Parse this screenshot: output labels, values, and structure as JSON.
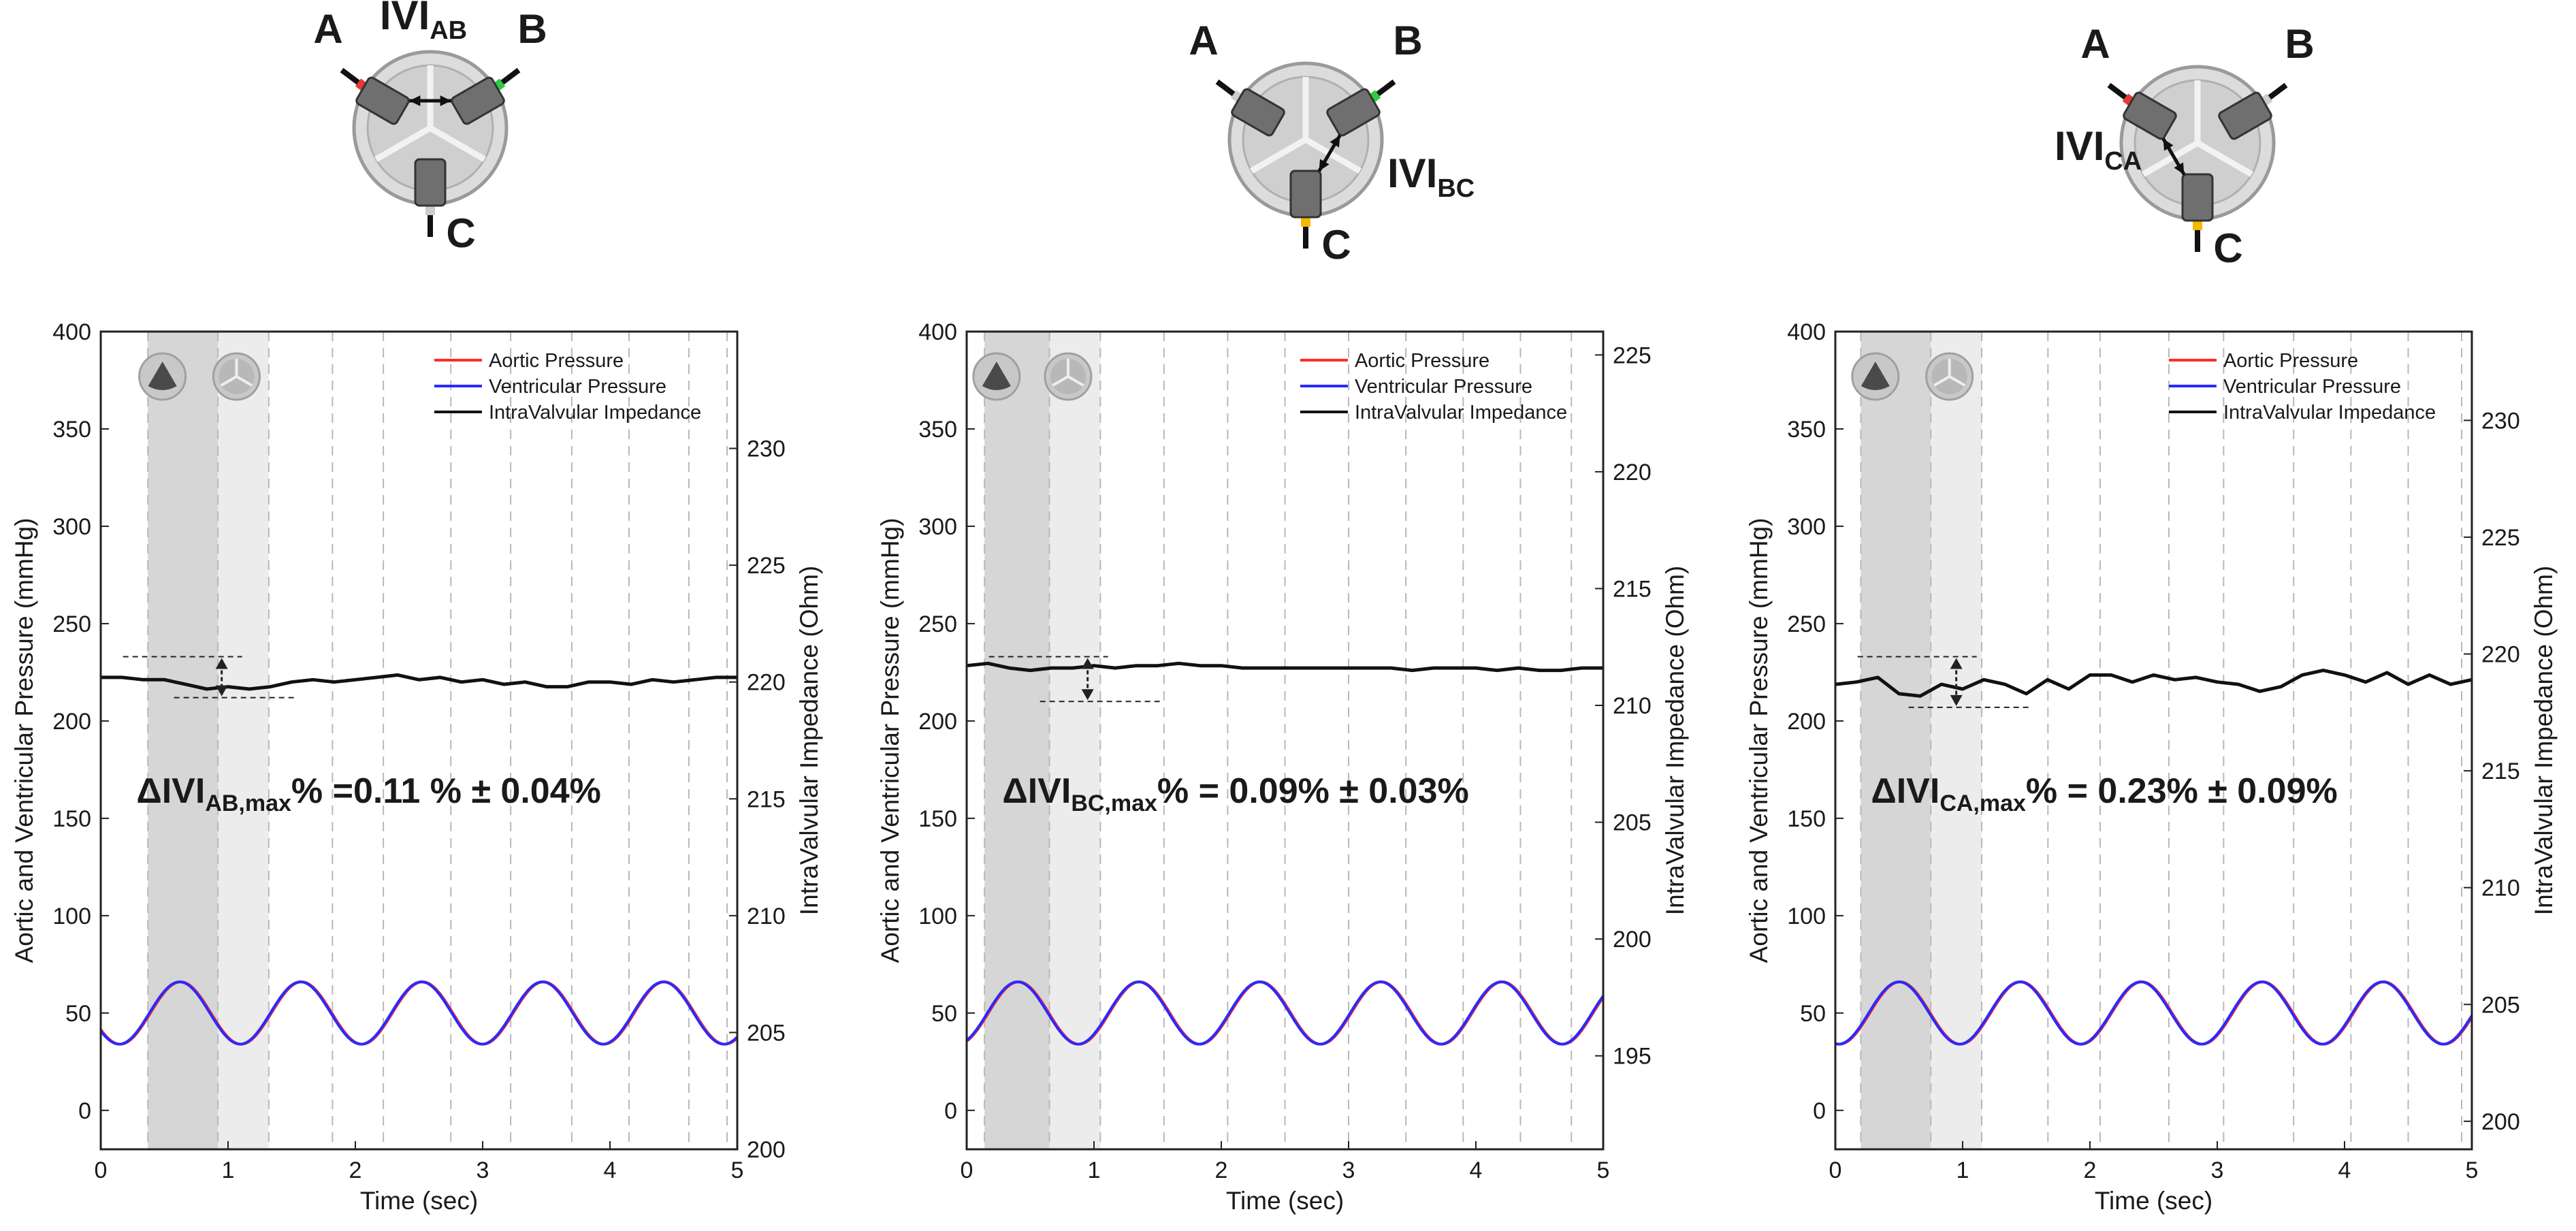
{
  "chart_data": [
    {
      "type": "line",
      "diagram": {
        "electrodes": [
          "A",
          "B",
          "C"
        ],
        "ivi_label": "IVI",
        "ivi_subscript": "AB",
        "pair": [
          "A",
          "B"
        ],
        "colors": {
          "A": "#e53935",
          "B": "#2ecc40",
          "C": "#cccccc"
        }
      },
      "annotation": {
        "prefix": "ΔIVI",
        "sub": "AB,max",
        "suffix": "% =0.11 % ± 0.04%"
      },
      "xlabel": "Time (sec)",
      "ylabel_left": "Aortic and Ventricular Pressure (mmHg)",
      "ylabel_right": "IntraValvular Impedance (Ohm)",
      "xlim": [
        0,
        5
      ],
      "ylim_left": [
        -20,
        400
      ],
      "ylim_right": [
        200,
        235
      ],
      "x_ticks": [
        "0",
        "1",
        "2",
        "3",
        "4",
        "5"
      ],
      "y_ticks_left": [
        "0",
        "50",
        "100",
        "150",
        "200",
        "250",
        "300",
        "350",
        "400"
      ],
      "y_ticks_right": [
        "200",
        "205",
        "210",
        "215",
        "220",
        "225",
        "230"
      ],
      "y_tick_values_right": [
        200,
        205,
        210,
        215,
        220,
        225,
        230
      ],
      "legend": {
        "position": "top-right",
        "entries": [
          "Aortic Pressure",
          "Ventricular Pressure",
          "IntraValvular Impedance"
        ],
        "colors": [
          "#ff2a2a",
          "#2a2aff",
          "#111111"
        ]
      },
      "shaded_regions": [
        {
          "from": 0.37,
          "to": 0.92,
          "shade": "dark"
        },
        {
          "from": 0.92,
          "to": 1.32,
          "shade": "light"
        }
      ],
      "dashed_lines_x": [
        1.82,
        2.22,
        2.75,
        3.22,
        3.7,
        4.15,
        4.62,
        4.92
      ],
      "pressure": {
        "mean": 50,
        "amplitude": 16,
        "period": 0.95,
        "peak_time": 0.62
      },
      "impedance_values": [
        220.2,
        220.2,
        220.1,
        220.1,
        219.9,
        219.7,
        219.8,
        219.7,
        219.8,
        220.0,
        220.1,
        220.0,
        220.1,
        220.2,
        220.3,
        220.1,
        220.2,
        220.0,
        220.1,
        219.9,
        220.0,
        219.8,
        219.8,
        220.0,
        220.0,
        219.9,
        220.1,
        220.0,
        220.1,
        220.2,
        220.2
      ],
      "arrow": {
        "x": 0.95,
        "y_top": 233,
        "y_bottom": 212
      }
    },
    {
      "type": "line",
      "diagram": {
        "electrodes": [
          "A",
          "B",
          "C"
        ],
        "ivi_label": "IVI",
        "ivi_subscript": "BC",
        "pair": [
          "B",
          "C"
        ],
        "colors": {
          "A": "#cccccc",
          "B": "#2ecc40",
          "C": "#f5b800"
        }
      },
      "annotation": {
        "prefix": "ΔIVI",
        "sub": "BC,max",
        "suffix": "% = 0.09% ± 0.03%"
      },
      "xlabel": "Time (sec)",
      "ylabel_left": "Aortic and Ventricular Pressure (mmHg)",
      "ylabel_right": "IntraValvular Impedance (Ohm)",
      "xlim": [
        0,
        5
      ],
      "ylim_left": [
        -20,
        400
      ],
      "ylim_right": [
        191,
        226
      ],
      "x_ticks": [
        "0",
        "1",
        "2",
        "3",
        "4",
        "5"
      ],
      "y_ticks_left": [
        "0",
        "50",
        "100",
        "150",
        "200",
        "250",
        "300",
        "350",
        "400"
      ],
      "y_ticks_right": [
        "195",
        "200",
        "205",
        "210",
        "215",
        "220",
        "225"
      ],
      "y_tick_values_right": [
        195,
        200,
        205,
        210,
        215,
        220,
        225
      ],
      "legend": {
        "position": "top-right",
        "entries": [
          "Aortic Pressure",
          "Ventricular Pressure",
          "IntraValvular Impedance"
        ],
        "colors": [
          "#ff2a2a",
          "#2a2aff",
          "#111111"
        ]
      },
      "shaded_regions": [
        {
          "from": 0.14,
          "to": 0.65,
          "shade": "dark"
        },
        {
          "from": 0.65,
          "to": 1.05,
          "shade": "light"
        }
      ],
      "dashed_lines_x": [
        1.55,
        2.05,
        2.5,
        3.0,
        3.45,
        3.9,
        4.35,
        4.75
      ],
      "pressure": {
        "mean": 50,
        "amplitude": 16,
        "period": 0.95,
        "peak_time": 0.4
      },
      "impedance_values": [
        211.7,
        211.8,
        211.6,
        211.5,
        211.6,
        211.6,
        211.7,
        211.6,
        211.7,
        211.7,
        211.8,
        211.7,
        211.7,
        211.6,
        211.6,
        211.6,
        211.6,
        211.6,
        211.6,
        211.6,
        211.6,
        211.5,
        211.6,
        211.6,
        211.6,
        211.5,
        211.6,
        211.5,
        211.5,
        211.6,
        211.6
      ],
      "arrow": {
        "x": 0.95,
        "y_top": 233,
        "y_bottom": 210
      }
    },
    {
      "type": "line",
      "diagram": {
        "electrodes": [
          "A",
          "B",
          "C"
        ],
        "ivi_label": "IVI",
        "ivi_subscript": "CA",
        "pair": [
          "C",
          "A"
        ],
        "colors": {
          "A": "#e53935",
          "B": "#cccccc",
          "C": "#f5b800"
        }
      },
      "annotation": {
        "prefix": "ΔIVI",
        "sub": "CA,max",
        "suffix": "% = 0.23% ± 0.09%"
      },
      "xlabel": "Time (sec)",
      "ylabel_left": "Aortic and Ventricular Pressure (mmHg)",
      "ylabel_right": "IntraValvular Impedance (Ohm)",
      "xlim": [
        0,
        5
      ],
      "ylim_left": [
        -20,
        400
      ],
      "ylim_right": [
        198.8,
        233.8
      ],
      "x_ticks": [
        "0",
        "1",
        "2",
        "3",
        "4",
        "5"
      ],
      "y_ticks_left": [
        "0",
        "50",
        "100",
        "150",
        "200",
        "250",
        "300",
        "350",
        "400"
      ],
      "y_ticks_right": [
        "200",
        "205",
        "210",
        "215",
        "220",
        "225",
        "230"
      ],
      "y_tick_values_right": [
        200,
        205,
        210,
        215,
        220,
        225,
        230
      ],
      "legend": {
        "position": "top-right",
        "entries": [
          "Aortic Pressure",
          "Ventricular Pressure",
          "IntraValvular Impedance"
        ],
        "colors": [
          "#ff2a2a",
          "#2a2aff",
          "#111111"
        ]
      },
      "shaded_regions": [
        {
          "from": 0.2,
          "to": 0.75,
          "shade": "dark"
        },
        {
          "from": 0.75,
          "to": 1.15,
          "shade": "light"
        }
      ],
      "dashed_lines_x": [
        1.67,
        2.08,
        2.62,
        3.05,
        3.6,
        4.05,
        4.5,
        4.92
      ],
      "pressure": {
        "mean": 50,
        "amplitude": 16,
        "period": 0.95,
        "peak_time": 0.5
      },
      "impedance_values": [
        218.7,
        218.8,
        219.0,
        218.3,
        218.2,
        218.7,
        218.5,
        218.9,
        218.7,
        218.3,
        218.9,
        218.5,
        219.1,
        219.1,
        218.8,
        219.1,
        218.9,
        219.0,
        218.8,
        218.7,
        218.4,
        218.6,
        219.1,
        219.3,
        219.1,
        218.8,
        219.2,
        218.7,
        219.1,
        218.7,
        218.9
      ],
      "arrow": {
        "x": 0.95,
        "y_top": 233,
        "y_bottom": 207
      }
    }
  ]
}
